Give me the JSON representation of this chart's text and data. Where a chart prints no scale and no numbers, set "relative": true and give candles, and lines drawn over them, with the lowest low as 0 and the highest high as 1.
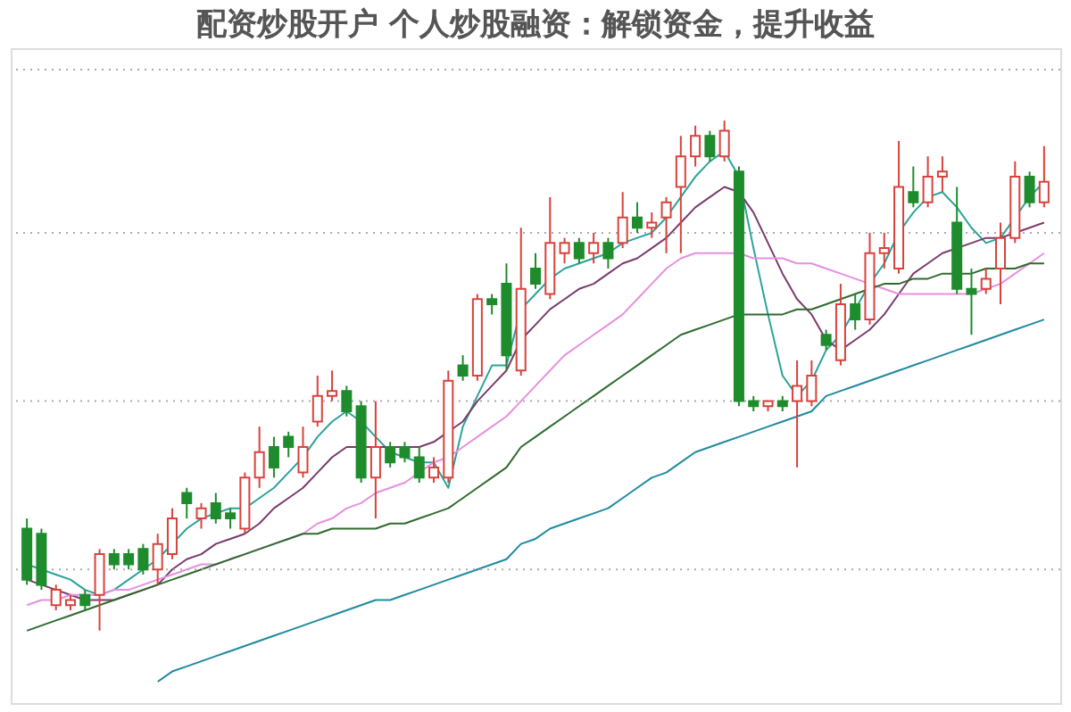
{
  "chart_data": {
    "type": "candlestick",
    "title": "配资炒股开户 个人炒股融资：解锁资金，提升收益",
    "relative": true,
    "categories": [
      null,
      null,
      null,
      null,
      null,
      null,
      null,
      null,
      null,
      null,
      null,
      null,
      null,
      null,
      null,
      null,
      null,
      null,
      null,
      null,
      null,
      null,
      null,
      null,
      null,
      null,
      null,
      null,
      null,
      null,
      null,
      null,
      null,
      null,
      null,
      null,
      null,
      null,
      null,
      null,
      null,
      null,
      null,
      null,
      null,
      null,
      null,
      null,
      null,
      null,
      null,
      null,
      null,
      null,
      null,
      null,
      null,
      null,
      null,
      null,
      null,
      null,
      null,
      null,
      null,
      null,
      null,
      null,
      null,
      null,
      null
    ],
    "ohlc": [
      [
        0.2,
        0.22,
        0.09,
        0.1
      ],
      [
        0.19,
        0.2,
        0.08,
        0.09
      ],
      [
        0.05,
        0.09,
        0.04,
        0.08
      ],
      [
        0.05,
        0.07,
        0.04,
        0.06
      ],
      [
        0.07,
        0.08,
        0.04,
        0.05
      ],
      [
        0.07,
        0.16,
        0,
        0.15
      ],
      [
        0.15,
        0.16,
        0.12,
        0.13
      ],
      [
        0.15,
        0.16,
        0.12,
        0.13
      ],
      [
        0.16,
        0.17,
        0.11,
        0.12
      ],
      [
        0.12,
        0.19,
        0.09,
        0.17
      ],
      [
        0.15,
        0.24,
        0.14,
        0.22
      ],
      [
        0.27,
        0.28,
        0.22,
        0.25
      ],
      [
        0.22,
        0.25,
        0.2,
        0.24
      ],
      [
        0.25,
        0.27,
        0.21,
        0.22
      ],
      [
        0.23,
        0.24,
        0.2,
        0.22
      ],
      [
        0.2,
        0.31,
        0.19,
        0.3
      ],
      [
        0.3,
        0.4,
        0.28,
        0.35
      ],
      [
        0.36,
        0.38,
        0.3,
        0.32
      ],
      [
        0.38,
        0.39,
        0.34,
        0.36
      ],
      [
        0.31,
        0.4,
        0.3,
        0.36
      ],
      [
        0.41,
        0.5,
        0.4,
        0.46
      ],
      [
        0.46,
        0.51,
        0.45,
        0.47
      ],
      [
        0.47,
        0.48,
        0.42,
        0.43
      ],
      [
        0.44,
        0.45,
        0.29,
        0.3
      ],
      [
        0.3,
        0.45,
        0.22,
        0.36
      ],
      [
        0.36,
        0.37,
        0.32,
        0.33
      ],
      [
        0.36,
        0.37,
        0.33,
        0.34
      ],
      [
        0.34,
        0.36,
        0.29,
        0.3
      ],
      [
        0.3,
        0.34,
        0.29,
        0.32
      ],
      [
        0.3,
        0.51,
        0.29,
        0.49
      ],
      [
        0.52,
        0.54,
        0.49,
        0.5
      ],
      [
        0.5,
        0.66,
        0.49,
        0.65
      ],
      [
        0.65,
        0.66,
        0.62,
        0.64
      ],
      [
        0.68,
        0.72,
        0.51,
        0.54
      ],
      [
        0.51,
        0.79,
        0.5,
        0.67
      ],
      [
        0.71,
        0.74,
        0.67,
        0.68
      ],
      [
        0.66,
        0.85,
        0.65,
        0.76
      ],
      [
        0.74,
        0.77,
        0.72,
        0.76
      ],
      [
        0.76,
        0.77,
        0.72,
        0.73
      ],
      [
        0.74,
        0.78,
        0.72,
        0.76
      ],
      [
        0.76,
        0.77,
        0.71,
        0.73
      ],
      [
        0.76,
        0.86,
        0.75,
        0.81
      ],
      [
        0.81,
        0.84,
        0.78,
        0.79
      ],
      [
        0.79,
        0.82,
        0.77,
        0.8
      ],
      [
        0.81,
        0.85,
        0.74,
        0.84
      ],
      [
        0.87,
        0.97,
        0.74,
        0.93
      ],
      [
        0.93,
        0.99,
        0.91,
        0.97
      ],
      [
        0.97,
        0.98,
        0.92,
        0.93
      ],
      [
        0.93,
        1.0,
        0.92,
        0.98
      ],
      [
        0.9,
        0.91,
        0.44,
        0.45
      ],
      [
        0.45,
        0.46,
        0.43,
        0.44
      ],
      [
        0.44,
        0.45,
        0.43,
        0.45
      ],
      [
        0.45,
        0.46,
        0.43,
        0.44
      ],
      [
        0.45,
        0.53,
        0.32,
        0.48
      ],
      [
        0.45,
        0.53,
        0.44,
        0.5
      ],
      [
        0.58,
        0.59,
        0.55,
        0.56
      ],
      [
        0.53,
        0.68,
        0.52,
        0.64
      ],
      [
        0.64,
        0.66,
        0.59,
        0.61
      ],
      [
        0.61,
        0.78,
        0.6,
        0.74
      ],
      [
        0.74,
        0.78,
        0.71,
        0.75
      ],
      [
        0.71,
        0.96,
        0.7,
        0.87
      ],
      [
        0.86,
        0.91,
        0.83,
        0.84
      ],
      [
        0.84,
        0.93,
        0.83,
        0.89
      ],
      [
        0.89,
        0.93,
        0.86,
        0.9
      ],
      [
        0.8,
        0.87,
        0.66,
        0.67
      ],
      [
        0.67,
        0.71,
        0.58,
        0.66
      ],
      [
        0.67,
        0.71,
        0.66,
        0.69
      ],
      [
        0.71,
        0.8,
        0.64,
        0.77
      ],
      [
        0.77,
        0.92,
        0.76,
        0.89
      ],
      [
        0.89,
        0.9,
        0.83,
        0.84
      ],
      [
        0.84,
        0.95,
        0.83,
        0.88
      ]
    ],
    "colors": [
      "#1e8c2d",
      "#1e8c2d",
      "#d9423c",
      "#d9423c",
      "#1e8c2d",
      "#d9423c",
      "#1e8c2d",
      "#1e8c2d",
      "#1e8c2d",
      "#d9423c",
      "#d9423c",
      "#1e8c2d",
      "#d9423c",
      "#1e8c2d",
      "#1e8c2d",
      "#d9423c",
      "#d9423c",
      "#1e8c2d",
      "#1e8c2d",
      "#d9423c",
      "#d9423c",
      "#d9423c",
      "#1e8c2d",
      "#1e8c2d",
      "#d9423c",
      "#1e8c2d",
      "#1e8c2d",
      "#1e8c2d",
      "#d9423c",
      "#d9423c",
      "#1e8c2d",
      "#d9423c",
      "#1e8c2d",
      "#1e8c2d",
      "#d9423c",
      "#1e8c2d",
      "#d9423c",
      "#d9423c",
      "#1e8c2d",
      "#d9423c",
      "#1e8c2d",
      "#d9423c",
      "#1e8c2d",
      "#d9423c",
      "#d9423c",
      "#d9423c",
      "#d9423c",
      "#1e8c2d",
      "#d9423c",
      "#1e8c2d",
      "#1e8c2d",
      "#d9423c",
      "#1e8c2d",
      "#d9423c",
      "#d9423c",
      "#1e8c2d",
      "#d9423c",
      "#1e8c2d",
      "#d9423c",
      "#d9423c",
      "#d9423c",
      "#1e8c2d",
      "#d9423c",
      "#d9423c",
      "#1e8c2d",
      "#1e8c2d",
      "#d9423c",
      "#d9423c",
      "#d9423c",
      "#1e8c2d",
      "#d9423c"
    ],
    "series": [
      {
        "type": "line",
        "color": "#2aa39a",
        "values": [
          0.13,
          0.12,
          0.11,
          0.1,
          0.08,
          0.07,
          0.08,
          0.1,
          0.12,
          0.14,
          0.17,
          0.2,
          0.22,
          0.23,
          0.24,
          0.24,
          0.26,
          0.28,
          0.31,
          0.34,
          0.38,
          0.41,
          0.43,
          0.41,
          0.38,
          0.35,
          0.34,
          0.33,
          0.33,
          0.28,
          0.4,
          0.46,
          0.52,
          0.52,
          0.63,
          0.66,
          0.69,
          0.71,
          0.72,
          0.73,
          0.74,
          0.76,
          0.77,
          0.78,
          0.81,
          0.85,
          0.89,
          0.92,
          0.94,
          0.89,
          0.75,
          0.62,
          0.5,
          0.46,
          0.49,
          0.55,
          0.58,
          0.63,
          0.68,
          0.72,
          0.78,
          0.82,
          0.85,
          0.86,
          0.83,
          0.79,
          0.76,
          0.77,
          0.81,
          0.85,
          0.88
        ]
      },
      {
        "type": "line",
        "color": "#7a3b6c",
        "values": [
          0.1,
          0.09,
          0.08,
          0.07,
          0.06,
          0.06,
          0.06,
          0.07,
          0.08,
          0.09,
          0.12,
          0.14,
          0.15,
          0.17,
          0.18,
          0.19,
          0.21,
          0.24,
          0.26,
          0.28,
          0.31,
          0.34,
          0.36,
          0.36,
          0.36,
          0.36,
          0.36,
          0.36,
          0.37,
          0.39,
          0.41,
          0.45,
          0.48,
          0.51,
          0.57,
          0.6,
          0.63,
          0.65,
          0.67,
          0.68,
          0.7,
          0.72,
          0.73,
          0.75,
          0.77,
          0.8,
          0.83,
          0.85,
          0.87,
          0.86,
          0.82,
          0.76,
          0.7,
          0.65,
          0.62,
          0.57,
          0.55,
          0.57,
          0.59,
          0.62,
          0.66,
          0.7,
          0.72,
          0.74,
          0.75,
          0.76,
          0.77,
          0.77,
          0.78,
          0.79,
          0.8
        ]
      },
      {
        "type": "line",
        "color": "#e68fe0",
        "values": [
          0.05,
          0.06,
          0.06,
          0.07,
          0.07,
          0.07,
          0.08,
          0.08,
          0.09,
          0.1,
          0.11,
          0.12,
          0.13,
          0.13,
          0.14,
          0.15,
          0.16,
          0.17,
          0.18,
          0.19,
          0.21,
          0.22,
          0.24,
          0.25,
          0.27,
          0.28,
          0.29,
          0.31,
          0.33,
          0.34,
          0.36,
          0.38,
          0.4,
          0.42,
          0.45,
          0.48,
          0.51,
          0.54,
          0.56,
          0.58,
          0.6,
          0.62,
          0.65,
          0.68,
          0.71,
          0.73,
          0.74,
          0.74,
          0.74,
          0.74,
          0.73,
          0.73,
          0.73,
          0.72,
          0.72,
          0.71,
          0.7,
          0.69,
          0.68,
          0.67,
          0.66,
          0.66,
          0.66,
          0.66,
          0.66,
          0.66,
          0.67,
          0.68,
          0.7,
          0.72,
          0.74
        ]
      },
      {
        "type": "line",
        "color": "#2f6b2f",
        "values": [
          0.0,
          0.01,
          0.02,
          0.03,
          0.04,
          0.05,
          0.06,
          0.07,
          0.08,
          0.09,
          0.1,
          0.11,
          0.12,
          0.13,
          0.14,
          0.15,
          0.16,
          0.17,
          0.18,
          0.19,
          0.19,
          0.2,
          0.2,
          0.2,
          0.2,
          0.21,
          0.21,
          0.22,
          0.23,
          0.24,
          0.26,
          0.28,
          0.3,
          0.32,
          0.36,
          0.38,
          0.4,
          0.42,
          0.44,
          0.46,
          0.48,
          0.5,
          0.52,
          0.54,
          0.56,
          0.58,
          0.59,
          0.6,
          0.61,
          0.62,
          0.62,
          0.62,
          0.62,
          0.63,
          0.63,
          0.64,
          0.65,
          0.66,
          0.67,
          0.68,
          0.68,
          0.69,
          0.69,
          0.7,
          0.7,
          0.7,
          0.71,
          0.71,
          0.71,
          0.72,
          0.72
        ]
      },
      {
        "type": "line",
        "color": "#1f8aa0",
        "values": [
          null,
          null,
          null,
          null,
          null,
          null,
          null,
          null,
          null,
          -0.1,
          -0.08,
          -0.07,
          -0.06,
          -0.05,
          -0.04,
          -0.03,
          -0.02,
          -0.01,
          0.0,
          0.01,
          0.02,
          0.03,
          0.04,
          0.05,
          0.06,
          0.06,
          0.07,
          0.08,
          0.09,
          0.1,
          0.11,
          0.12,
          0.13,
          0.14,
          0.17,
          0.18,
          0.2,
          0.21,
          0.22,
          0.23,
          0.24,
          0.26,
          0.28,
          0.3,
          0.31,
          0.33,
          0.35,
          0.36,
          0.37,
          0.38,
          0.39,
          0.4,
          0.41,
          0.42,
          0.43,
          0.46,
          0.47,
          0.48,
          0.49,
          0.5,
          0.51,
          0.52,
          0.53,
          0.54,
          0.55,
          0.56,
          0.57,
          0.58,
          0.59,
          0.6,
          0.61
        ]
      }
    ],
    "ref_lines": [
      {
        "axis": "y",
        "value": 1.1,
        "color": "#aaaaaa",
        "line_style": "dotted"
      },
      {
        "axis": "y",
        "value": 0.78,
        "color": "#aaaaaa",
        "line_style": "dotted"
      },
      {
        "axis": "y",
        "value": 0.45,
        "color": "#aaaaaa",
        "line_style": "dotted"
      },
      {
        "axis": "y",
        "value": 0.12,
        "color": "#aaaaaa",
        "line_style": "dotted"
      }
    ]
  }
}
